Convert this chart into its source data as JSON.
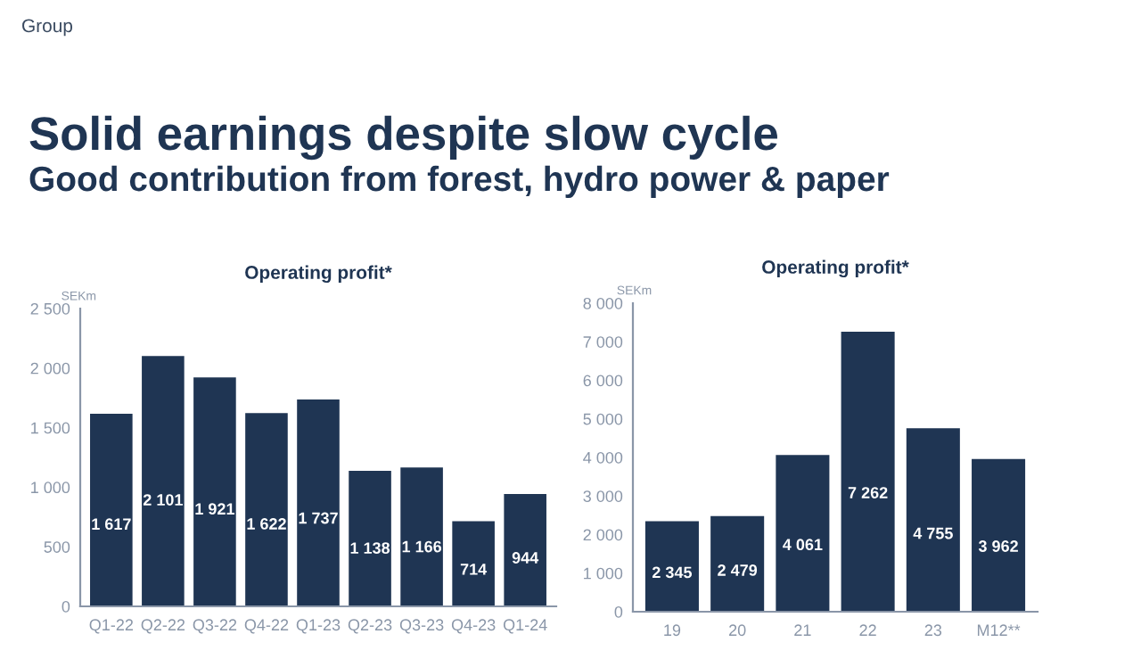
{
  "chart_data": [
    {
      "type": "bar",
      "title": "Operating profit*",
      "ylabel": "SEKm",
      "annotations": [
        "Group",
        "Solid earnings despite slow cycle",
        "Good contribution from forest, hydro power & paper"
      ],
      "categories": [
        "Q1-22",
        "Q2-22",
        "Q3-22",
        "Q4-22",
        "Q1-23",
        "Q2-23",
        "Q3-23",
        "Q4-23",
        "Q1-24"
      ],
      "values": [
        1617,
        2101,
        1921,
        1622,
        1737,
        1138,
        1166,
        714,
        944
      ],
      "value_labels": [
        "1 617",
        "2 101",
        "1 921",
        "1 622",
        "1 737",
        "1 138",
        "1 166",
        "714",
        "944"
      ],
      "color": "#1f3553",
      "ylim": [
        0,
        2500
      ],
      "yticks": [
        0,
        500,
        {
          "value": 1000,
          "label": "1 000"
        },
        {
          "value": 1500,
          "label": "1 500"
        },
        {
          "value": 2000,
          "label": "2 000"
        },
        {
          "value": 2500,
          "label": "2 500"
        }
      ],
      "grid": false,
      "legend": false
    },
    {
      "type": "bar",
      "title": "Operating profit*",
      "ylabel": "SEKm",
      "categories": [
        "19",
        "20",
        "21",
        "22",
        "23",
        "M12**"
      ],
      "values": [
        2345,
        2479,
        4061,
        7262,
        4755,
        3962
      ],
      "value_labels": [
        "2 345",
        "2 479",
        "4 061",
        "7 262",
        "4 755",
        "3 962"
      ],
      "color": "#1f3553",
      "ylim": [
        0,
        8000
      ],
      "yticks": [
        0,
        {
          "value": 1000,
          "label": "1 000"
        },
        {
          "value": 2000,
          "label": "2 000"
        },
        {
          "value": 3000,
          "label": "3 000"
        },
        {
          "value": 4000,
          "label": "4 000"
        },
        {
          "value": 5000,
          "label": "5 000"
        },
        {
          "value": 6000,
          "label": "6 000"
        },
        {
          "value": 7000,
          "label": "7 000"
        },
        {
          "value": 8000,
          "label": "8 000"
        }
      ],
      "grid": false,
      "legend": false
    }
  ]
}
